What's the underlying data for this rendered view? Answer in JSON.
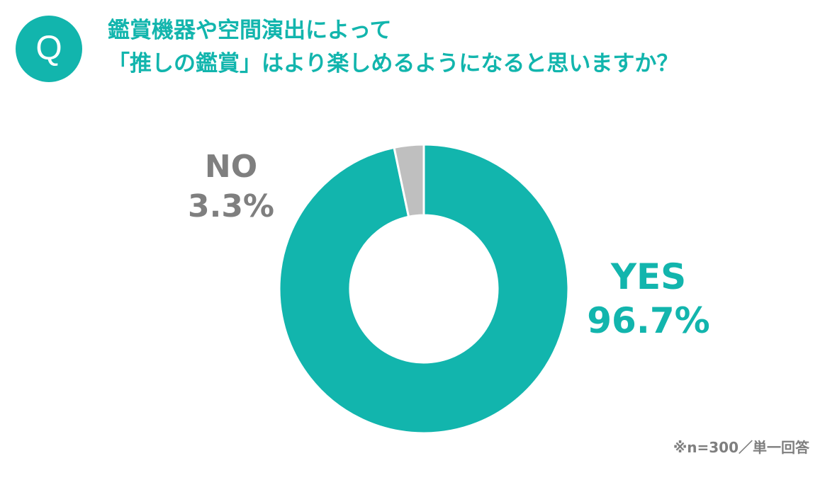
{
  "question": {
    "badge": "Q",
    "line1": "鑑賞機器や空間演出によって",
    "line2": "「推しの鑑賞」はより楽しめるようになると思いますか？"
  },
  "footnote": "※n=300／単一回答",
  "colors": {
    "accent": "#12b5ad",
    "yes": "#12b5ad",
    "no": "#bfbfbf",
    "muted_text": "#7f7f7f"
  },
  "chart_data": {
    "type": "pie",
    "variant": "donut",
    "slices": [
      {
        "name": "YES",
        "value": 96.7,
        "label": "96.7%",
        "color": "#12b5ad"
      },
      {
        "name": "NO",
        "value": 3.3,
        "label": "3.3%",
        "color": "#bfbfbf"
      }
    ]
  }
}
